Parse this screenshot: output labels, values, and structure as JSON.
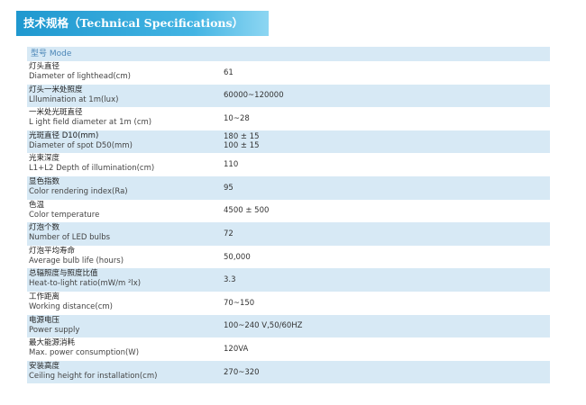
{
  "header": {
    "title_cn": "技术规格",
    "title_en": "（Technical Specifications）"
  },
  "model_label": "型号  Mode",
  "rows": [
    {
      "cn": "灯头直径",
      "en": "Diameter of lighthead(cm)",
      "value": "61"
    },
    {
      "cn": "灯头一米处照度",
      "en": "Lllumination at 1m(lux)",
      "value": "60000~120000"
    },
    {
      "cn": "一米处光斑直径",
      "en": "L ight field diameter at 1m (cm)",
      "value": "10~28"
    },
    {
      "cn": "光斑直径   D10(mm)",
      "en": "Diameter of spot  D50(mm)",
      "value": "180 ± 15",
      "value2": "100 ± 15"
    },
    {
      "cn": "光束深度",
      "en": "L1+L2 Depth of illumination(cm)",
      "value": "110"
    },
    {
      "cn": "显色指数",
      "en": "Color rendering index(Ra)",
      "value": "95"
    },
    {
      "cn": "色温",
      "en": "Color temperature",
      "value": "4500 ± 500"
    },
    {
      "cn": "灯泡个数",
      "en": "Number of LED bulbs",
      "value": "72"
    },
    {
      "cn": "灯泡平均寿命",
      "en": "Average bulb life (hours)",
      "value": "50,000"
    },
    {
      "cn": "总辐照度与照度比值",
      "en": "Heat-to-light ratio(mW/m ²lx)",
      "value": "3.3"
    },
    {
      "cn": "工作距离",
      "en": "Working distance(cm)",
      "value": "70~150"
    },
    {
      "cn": "电源电压",
      "en": "Power supply",
      "value": "100~240 V,50/60HZ"
    },
    {
      "cn": "最大能源消耗",
      "en": "Max. power consumption(W)",
      "value": "120VA"
    },
    {
      "cn": "安装高度",
      "en": "Ceiling height for installation(cm)",
      "value": "270~320"
    }
  ]
}
